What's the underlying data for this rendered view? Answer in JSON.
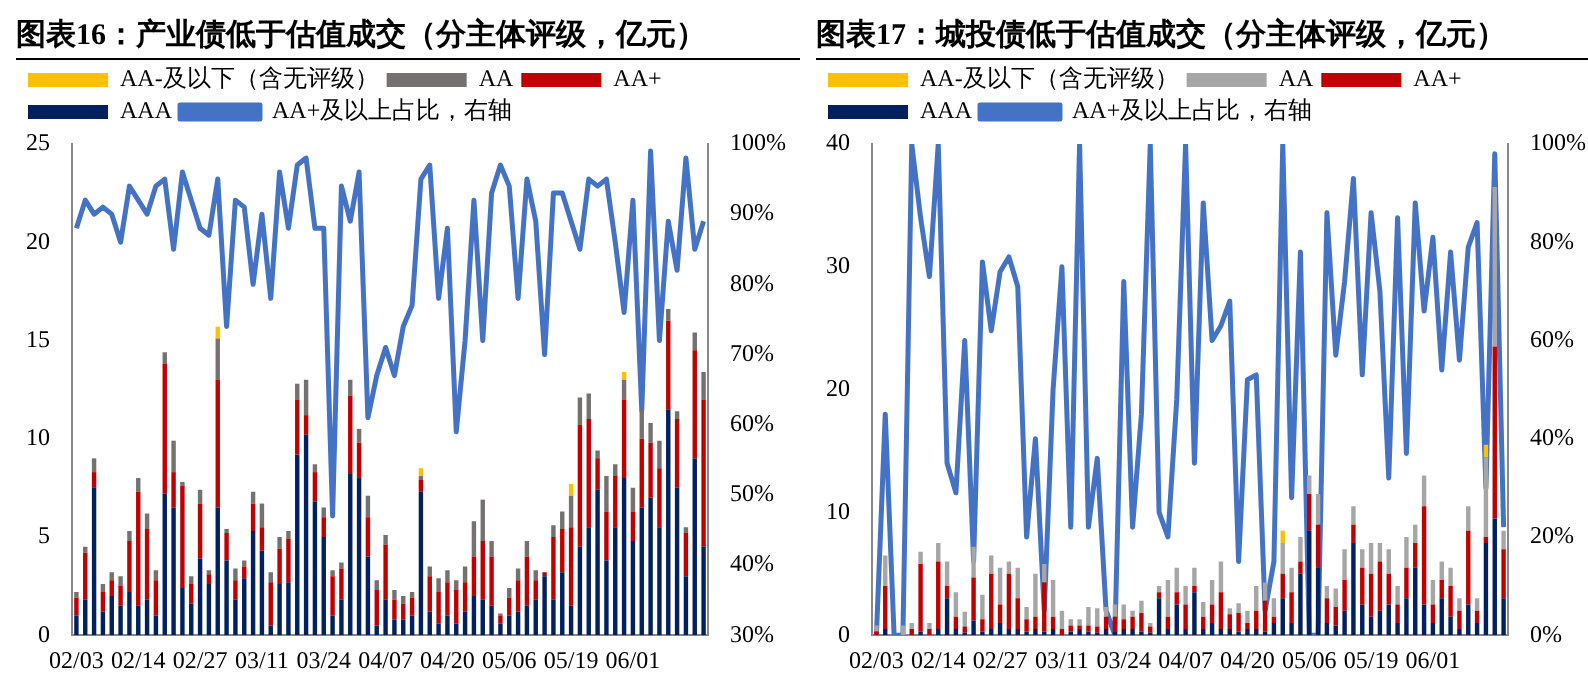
{
  "chart_data": [
    {
      "type": "bar",
      "title": "图表16：产业债低于估值成交（分主体评级，亿元）",
      "stacked": true,
      "legend": "top",
      "categories": [
        "02/03",
        null,
        null,
        null,
        null,
        null,
        null,
        "02/14",
        null,
        null,
        null,
        null,
        null,
        null,
        "02/27",
        null,
        null,
        null,
        null,
        null,
        null,
        "03/11",
        null,
        null,
        null,
        null,
        null,
        null,
        "03/24",
        null,
        null,
        null,
        null,
        null,
        null,
        "04/07",
        null,
        null,
        null,
        null,
        null,
        null,
        "04/20",
        null,
        null,
        null,
        null,
        null,
        null,
        "05/06",
        null,
        null,
        null,
        null,
        null,
        null,
        "05/19",
        null,
        null,
        null,
        null,
        null,
        null,
        "06/01",
        null,
        null,
        null,
        null,
        null,
        null,
        null,
        null
      ],
      "ylim": [
        0,
        25
      ],
      "yticks": [
        0,
        5,
        10,
        15,
        20,
        25
      ],
      "y2lim": [
        30,
        100
      ],
      "y2ticks": [
        {
          "value": 30,
          "label": "30%"
        },
        {
          "value": 40,
          "label": "40%"
        },
        {
          "value": 50,
          "label": "50%"
        },
        {
          "value": 60,
          "label": "60%"
        },
        {
          "value": 70,
          "label": "70%"
        },
        {
          "value": 80,
          "label": "80%"
        },
        {
          "value": 90,
          "label": "90%"
        },
        {
          "value": 100,
          "label": "100%"
        }
      ],
      "series": [
        {
          "name": "AAA",
          "color": "#002060",
          "values": [
            1.0,
            1.8,
            7.5,
            1.2,
            2.0,
            1.5,
            2.2,
            1.5,
            1.8,
            1.0,
            7.2,
            6.5,
            2.4,
            1.6,
            3.9,
            2.6,
            6.5,
            3.8,
            1.8,
            2.9,
            5.3,
            4.3,
            0.5,
            2.6,
            2.7,
            9.2,
            10.2,
            6.8,
            5.0,
            1.0,
            1.8,
            8.2,
            8.0,
            4.0,
            0.5,
            1.8,
            0.8,
            0.8,
            1.0,
            7.3,
            1.2,
            0.6,
            1.0,
            0.6,
            1.2,
            2.0,
            1.8,
            1.5,
            0.6,
            1.0,
            1.2,
            1.5,
            1.8,
            3.0,
            1.8,
            3.2,
            1.5,
            4.5,
            5.5,
            7.4,
            3.8,
            5.5,
            8.0,
            4.8,
            6.5,
            7.0,
            5.5,
            11.5,
            7.5,
            3.0,
            9.0,
            4.5
          ]
        },
        {
          "name": "AA+",
          "color": "#c00000",
          "values": [
            0.9,
            2.4,
            0.8,
            1.0,
            0.8,
            1.0,
            2.6,
            5.8,
            3.6,
            1.8,
            6.6,
            1.8,
            5.2,
            1.0,
            2.8,
            0.5,
            6.5,
            1.4,
            1.0,
            0.6,
            1.4,
            1.2,
            2.2,
            1.8,
            2.2,
            2.8,
            1.0,
            1.5,
            1.0,
            2.0,
            1.6,
            4.0,
            1.8,
            2.0,
            1.8,
            2.8,
            1.0,
            0.8,
            0.9,
            0.6,
            1.8,
            1.6,
            1.7,
            1.7,
            1.5,
            2.0,
            3.0,
            2.5,
            0.4,
            0.9,
            1.6,
            2.5,
            1.0,
            0.2,
            3.2,
            2.2,
            4.0,
            6.2,
            5.5,
            1.6,
            2.5,
            2.6,
            4.0,
            1.5,
            3.5,
            2.8,
            3.0,
            4.5,
            3.5,
            2.2,
            5.5,
            7.5
          ]
        },
        {
          "name": "AA",
          "color": "#767171",
          "values": [
            0.3,
            0.3,
            0.7,
            0.4,
            0.4,
            0.5,
            0.5,
            0.7,
            0.8,
            0.5,
            0.6,
            1.6,
            0.2,
            0.4,
            0.7,
            0.2,
            2.1,
            0.2,
            0.6,
            0.3,
            0.6,
            1.2,
            0.5,
            0.6,
            0.4,
            0.8,
            1.8,
            0.4,
            0.5,
            0.3,
            0.3,
            0.8,
            0.7,
            1.1,
            0.5,
            0.5,
            0.5,
            0.4,
            0.3,
            0.2,
            0.5,
            0.7,
            0.6,
            0.5,
            0.8,
            1.8,
            2.1,
            0.8,
            0.1,
            0.5,
            0.6,
            0.8,
            0.5,
            0.0,
            0.6,
            0.9,
            1.6,
            1.4,
            1.3,
            0.4,
            1.8,
            0.6,
            1.0,
            1.2,
            1.5,
            1.0,
            1.4,
            0.6,
            0.4,
            0.3,
            0.9,
            1.4
          ]
        },
        {
          "name": "AA-及以下（含无评级）",
          "color": "#ffc000",
          "values": [
            0,
            0,
            0,
            0,
            0,
            0,
            0,
            0,
            0,
            0,
            0,
            0,
            0,
            0,
            0,
            0,
            0.6,
            0,
            0,
            0,
            0,
            0,
            0,
            0,
            0,
            0,
            0,
            0,
            0,
            0,
            0,
            0,
            0,
            0,
            0,
            0,
            0,
            0,
            0,
            0.4,
            0,
            0,
            0,
            0,
            0,
            0,
            0,
            0,
            0,
            0,
            0,
            0,
            0,
            0,
            0,
            0,
            0.6,
            0,
            0,
            0,
            0,
            0,
            0.4,
            0,
            0,
            0,
            0,
            0,
            0,
            0,
            0,
            0
          ]
        },
        {
          "name": "AA+及以上占比，右轴",
          "type": "line",
          "axis": "y2",
          "color": "#4472c4",
          "values": [
            88,
            92,
            90,
            91,
            90,
            86,
            94,
            92,
            90,
            94,
            95,
            85,
            96,
            92,
            88,
            87,
            95,
            74,
            92,
            91,
            80,
            90,
            78,
            96,
            88,
            97,
            98,
            88,
            88,
            47,
            94,
            89,
            96,
            61,
            67,
            71,
            67,
            74,
            77,
            95,
            97,
            78,
            88,
            59,
            72,
            92,
            72,
            93,
            97,
            94,
            78,
            95,
            89,
            70,
            93,
            93,
            89,
            85,
            95,
            94,
            95,
            86,
            76,
            92,
            62,
            99,
            72,
            89,
            82,
            98,
            85,
            89
          ]
        }
      ]
    },
    {
      "type": "bar",
      "title": "图表17：城投债低于估值成交（分主体评级，亿元）",
      "stacked": true,
      "legend": "top",
      "categories": [
        "02/03",
        null,
        null,
        null,
        null,
        null,
        null,
        "02/14",
        null,
        null,
        null,
        null,
        null,
        null,
        "02/27",
        null,
        null,
        null,
        null,
        null,
        null,
        "03/11",
        null,
        null,
        null,
        null,
        null,
        null,
        "03/24",
        null,
        null,
        null,
        null,
        null,
        null,
        "04/07",
        null,
        null,
        null,
        null,
        null,
        null,
        "04/20",
        null,
        null,
        null,
        null,
        null,
        null,
        "05/06",
        null,
        null,
        null,
        null,
        null,
        null,
        "05/19",
        null,
        null,
        null,
        null,
        null,
        null,
        "06/01",
        null,
        null,
        null,
        null,
        null,
        null,
        null,
        null
      ],
      "ylim": [
        0,
        40
      ],
      "yticks": [
        0,
        10,
        20,
        30,
        40
      ],
      "y2lim": [
        0,
        100
      ],
      "y2ticks": [
        {
          "value": 0,
          "label": "0%"
        },
        {
          "value": 20,
          "label": "20%"
        },
        {
          "value": 40,
          "label": "40%"
        },
        {
          "value": 60,
          "label": "60%"
        },
        {
          "value": 80,
          "label": "80%"
        },
        {
          "value": 100,
          "label": "100%"
        }
      ],
      "series": [
        {
          "name": "AAA",
          "color": "#002060",
          "values": [
            0,
            0.5,
            0,
            0,
            0,
            0.3,
            0,
            0.5,
            3,
            0.5,
            0.2,
            1.2,
            0.3,
            0.5,
            1.0,
            0.5,
            0.5,
            0.3,
            0.5,
            0.3,
            0.5,
            0,
            0.3,
            0.5,
            0.3,
            0.2,
            0.5,
            0.3,
            0.5,
            0.5,
            0.3,
            0.2,
            3,
            0.5,
            2.5,
            0.5,
            3.5,
            0.5,
            1.0,
            0.5,
            0.5,
            0.3,
            0.5,
            0.5,
            0.3,
            1.0,
            3.0,
            1.0,
            5,
            8.5,
            5.5,
            1.0,
            0.8,
            2.0,
            7.5,
            2.5,
            1.5,
            2.0,
            2.5,
            1.0,
            3.0,
            5.5,
            2.5,
            1.0,
            3.0,
            1.5,
            0.5,
            2.5,
            1.0,
            7.5,
            9.5,
            3.0
          ]
        },
        {
          "name": "AA+",
          "color": "#c00000",
          "values": [
            0.3,
            3.5,
            0,
            0,
            0.5,
            5.5,
            0.5,
            5.5,
            1.0,
            1.0,
            0.5,
            3.5,
            1.0,
            4.5,
            1.5,
            4.5,
            2.5,
            1.0,
            1.0,
            4.0,
            1.0,
            0.5,
            0.5,
            0.3,
            0.5,
            0.5,
            1.0,
            1.2,
            0.8,
            1.0,
            1.5,
            0.5,
            0.5,
            1.0,
            1.0,
            2.0,
            0.5,
            1.0,
            1.5,
            3.0,
            1.2,
            1.5,
            0.5,
            1.5,
            2.5,
            0.5,
            2.0,
            2.5,
            1.0,
            3.0,
            3.5,
            2.0,
            1.5,
            2.5,
            1.5,
            3.0,
            3.5,
            4.0,
            2.5,
            1.5,
            2.5,
            2.0,
            8.0,
            1.5,
            1.5,
            2.5,
            1.5,
            6.0,
            1.0,
            0.5,
            14.0,
            4.0
          ]
        },
        {
          "name": "AA",
          "color": "#a6a6a6",
          "values": [
            0.5,
            2.5,
            0,
            0.8,
            0.5,
            1.0,
            0.5,
            1.5,
            2.0,
            2.0,
            1.2,
            2.5,
            2.0,
            1.5,
            3.0,
            1.0,
            2.5,
            1.0,
            3.5,
            1.5,
            3.0,
            1.5,
            0.5,
            0.5,
            1.5,
            1.5,
            0.8,
            1.0,
            1.2,
            0.5,
            1.0,
            0.3,
            0.5,
            3.0,
            2.0,
            1.5,
            1.5,
            1.2,
            2.0,
            2.5,
            0.5,
            0.8,
            1.0,
            2.0,
            1.5,
            1.5,
            2.5,
            2.0,
            2.0,
            1.5,
            2.5,
            1.0,
            1.5,
            2.5,
            1.5,
            1.5,
            2.5,
            1.5,
            2.0,
            1.5,
            2.5,
            1.5,
            2.5,
            2.0,
            1.5,
            1.5,
            1.0,
            2.0,
            1.0,
            6.5,
            13.0,
            1.5
          ]
        },
        {
          "name": "AA-及以下（含无评级）",
          "color": "#ffc000",
          "values": [
            0,
            0,
            0,
            0,
            0,
            0,
            0,
            0,
            0,
            0,
            0,
            0,
            0,
            0,
            0,
            0,
            0,
            0,
            0,
            0,
            0,
            0,
            0,
            0,
            0,
            0,
            0,
            0,
            0,
            0,
            0,
            0,
            0,
            0,
            0,
            0,
            0,
            0,
            0,
            0,
            0,
            0,
            0,
            0,
            0,
            0,
            1.0,
            0,
            0,
            0,
            0,
            0,
            0,
            0,
            0,
            0,
            0,
            0,
            0,
            0,
            0,
            0,
            0,
            0,
            0,
            0,
            0,
            0,
            0,
            1.0,
            0,
            0
          ]
        },
        {
          "name": "AA+及以上占比，右轴",
          "type": "line",
          "axis": "y2",
          "color": "#4472c4",
          "values": [
            0,
            45,
            0,
            0,
            100,
            85,
            73,
            100,
            35,
            29,
            60,
            15,
            76,
            62,
            74,
            77,
            71,
            20,
            40,
            5,
            50,
            75,
            22,
            100,
            22,
            36,
            5,
            0,
            72,
            22,
            45,
            100,
            25,
            20,
            48,
            100,
            35,
            88,
            60,
            63,
            68,
            15,
            52,
            53,
            5,
            15,
            100,
            28,
            78,
            0,
            0,
            86,
            57,
            72,
            93,
            53,
            86,
            70,
            32,
            85,
            37,
            88,
            66,
            81,
            54,
            78,
            56,
            79,
            84,
            30,
            98,
            22
          ]
        }
      ]
    }
  ]
}
